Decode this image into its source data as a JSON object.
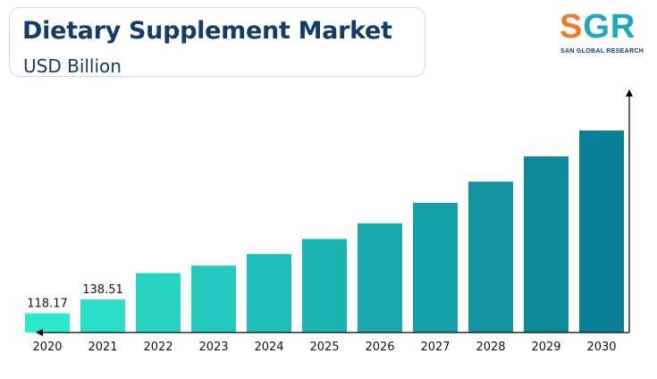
{
  "header": {
    "title": "Dietary Supplement Market",
    "subtitle": "USD Billion"
  },
  "logo": {
    "mark": "SGR",
    "tagline": "SAN GLOBAL RESEARCH"
  },
  "colors": {
    "bar_start": "#2de8cf",
    "bar_end": "#0b7f95",
    "title": "#123c69",
    "axis": "#000000"
  },
  "chart_data": {
    "type": "bar",
    "title": "Dietary Supplement Market",
    "ylabel": "USD Billion",
    "xlabel": "",
    "categories": [
      "2020",
      "2021",
      "2022",
      "2023",
      "2024",
      "2025",
      "2026",
      "2027",
      "2028",
      "2029",
      "2030"
    ],
    "values": [
      118.17,
      138.51,
      177,
      188,
      205,
      227,
      250,
      280,
      311,
      348,
      386
    ],
    "data_labels": [
      "118.17",
      "138.51",
      "",
      "",
      "",
      "",
      "",
      "",
      "",
      "",
      ""
    ],
    "ylim": [
      90,
      420
    ],
    "grid": false,
    "legend": "none"
  }
}
